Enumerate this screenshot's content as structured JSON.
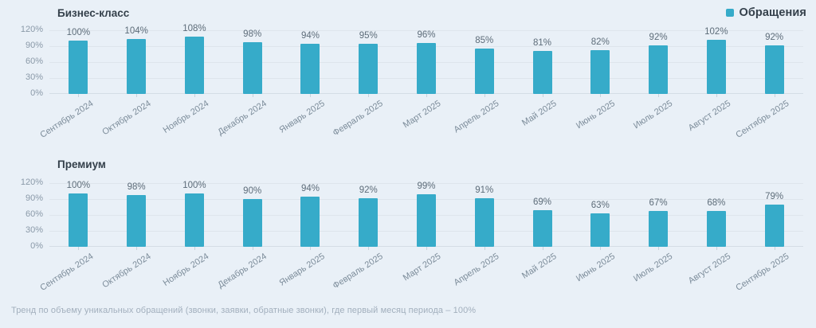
{
  "page": {
    "background": "#e9f0f7",
    "footer_note": "Тренд по объему уникальных обращений (звонки, заявки, обратные звонки), где первый месяц периода – 100%"
  },
  "legend": {
    "label": "Обращения",
    "marker_color": "#36abc9",
    "position": "top-right"
  },
  "colors": {
    "bar": "#36abc9",
    "gridline": "#dee5ec",
    "title_text": "#34404b",
    "value_label_text": "#5d6c79",
    "axis_label_text": "#8a99a8"
  },
  "chart_data": [
    {
      "type": "bar",
      "title": "Бизнес-класс",
      "categories": [
        "Сентябрь 2024",
        "Октябрь 2024",
        "Ноябрь 2024",
        "Декабрь 2024",
        "Январь 2025",
        "Февраль 2025",
        "Март 2025",
        "Апрель 2025",
        "Май 2025",
        "Июнь 2025",
        "Июль 2025",
        "Август 2025",
        "Сентябрь 2025"
      ],
      "series": [
        {
          "name": "Обращения",
          "values": [
            100,
            104,
            108,
            98,
            94,
            95,
            96,
            85,
            81,
            82,
            92,
            102,
            92
          ]
        }
      ],
      "value_suffix": "%",
      "ylim": [
        0,
        120
      ],
      "yticks": [
        "120%",
        "90%",
        "60%",
        "30%",
        "0%"
      ],
      "grid": true,
      "legend_position": "top-right",
      "bar_color": "#36abc9"
    },
    {
      "type": "bar",
      "title": "Премиум",
      "categories": [
        "Сентябрь 2024",
        "Октябрь 2024",
        "Ноябрь 2024",
        "Декабрь 2024",
        "Январь 2025",
        "Февраль 2025",
        "Март 2025",
        "Апрель 2025",
        "Май 2025",
        "Июнь 2025",
        "Июль 2025",
        "Август 2025",
        "Сентябрь 2025"
      ],
      "series": [
        {
          "name": "Обращения",
          "values": [
            100,
            98,
            100,
            90,
            94,
            92,
            99,
            91,
            69,
            63,
            67,
            68,
            79
          ]
        }
      ],
      "value_suffix": "%",
      "ylim": [
        0,
        120
      ],
      "yticks": [
        "120%",
        "90%",
        "60%",
        "30%",
        "0%"
      ],
      "grid": true,
      "legend_position": "top-right",
      "bar_color": "#36abc9"
    }
  ]
}
